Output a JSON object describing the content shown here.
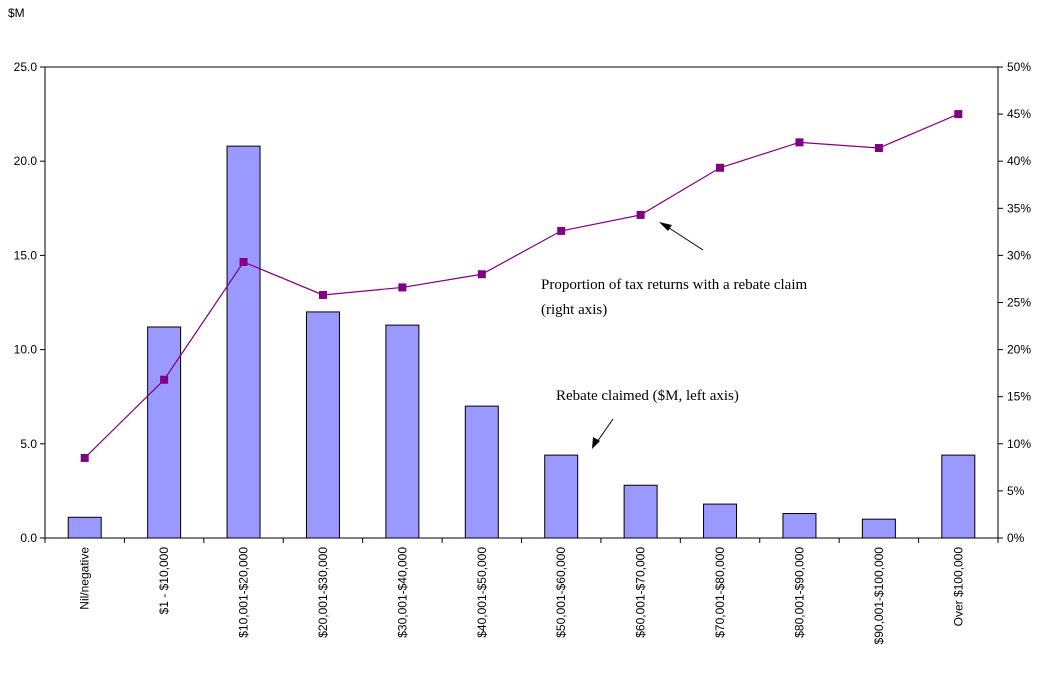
{
  "chart_data": {
    "type": "bar+line",
    "y_left_unit_label": "$M",
    "categories": [
      "Nil/negative",
      "$1 - $10,000",
      "$10,001-$20,000",
      "$20,001-$30,000",
      "$30,001-$40,000",
      "$40,001-$50,000",
      "$50,001-$60,000",
      "$60,001-$70,000",
      "$70,001-$80,000",
      "$80,001-$90,000",
      "$90,001-$100,000",
      "Over $100,000"
    ],
    "series": [
      {
        "kind": "bar",
        "axis": "left",
        "color": "#9999ff",
        "values": [
          1.1,
          11.2,
          20.8,
          12.0,
          11.3,
          7.0,
          4.4,
          2.8,
          1.8,
          1.3,
          1.0,
          4.4
        ]
      },
      {
        "kind": "line",
        "axis": "right",
        "color": "#800080",
        "values": [
          8.5,
          16.8,
          29.3,
          25.8,
          26.6,
          28.0,
          32.6,
          34.3,
          39.3,
          42.0,
          41.4,
          45.0
        ]
      }
    ],
    "y_left": {
      "min": 0,
      "max": 25,
      "step": 5,
      "tick_labels": [
        "0.0",
        "5.0",
        "10.0",
        "15.0",
        "20.0",
        "25.0"
      ]
    },
    "y_right": {
      "min": 0,
      "max": 50,
      "step": 5,
      "tick_labels": [
        "0%",
        "5%",
        "10%",
        "15%",
        "20%",
        "25%",
        "30%",
        "35%",
        "40%",
        "45%",
        "50%"
      ]
    },
    "grid": false,
    "legend": "none",
    "annotations": {
      "line": {
        "lines": [
          "Proportion of tax returns with a rebate claim",
          "(right axis)"
        ]
      },
      "bar": {
        "lines": [
          "Rebate claimed ($M, left axis)"
        ]
      }
    }
  }
}
